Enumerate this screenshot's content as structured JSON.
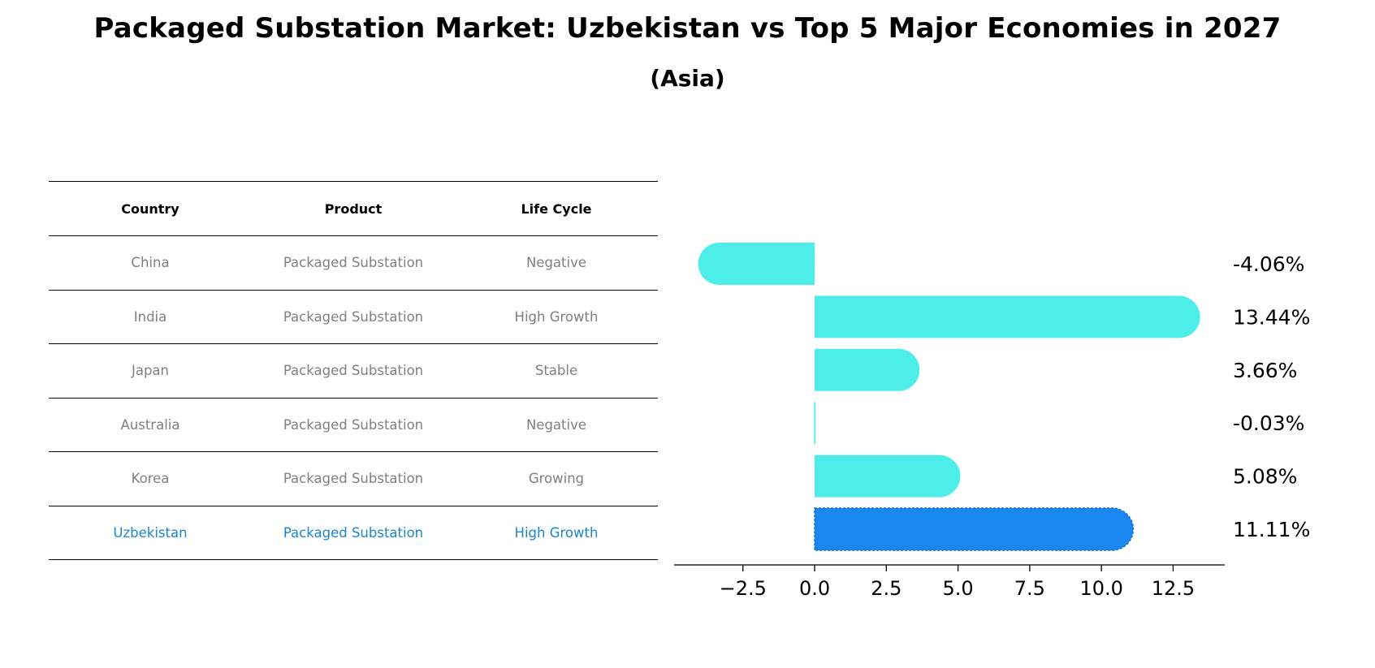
{
  "title": "Packaged Substation Market: Uzbekistan vs Top 5 Major Economies in 2027",
  "subtitle": "(Asia)",
  "table": {
    "headers": [
      "Country",
      "Product",
      "Life Cycle"
    ],
    "rows": [
      [
        "China",
        "Packaged Substation",
        "Negative"
      ],
      [
        "India",
        "Packaged Substation",
        "High Growth"
      ],
      [
        "Japan",
        "Packaged Substation",
        "Stable"
      ],
      [
        "Australia",
        "Packaged Substation",
        "Negative"
      ],
      [
        "Korea",
        "Packaged Substation",
        "Growing"
      ],
      [
        "Uzbekistan",
        "Packaged Substation",
        "High Growth"
      ]
    ]
  },
  "colors": {
    "bar": "#4deeea",
    "highlight_bar": "#1a86f0",
    "highlight_text": "#1a86d0",
    "muted_text": "#808080"
  },
  "chart_data": {
    "type": "bar",
    "orientation": "horizontal",
    "categories": [
      "China",
      "India",
      "Japan",
      "Australia",
      "Korea",
      "Uzbekistan"
    ],
    "values": [
      -4.06,
      13.44,
      3.66,
      -0.03,
      5.08,
      11.11
    ],
    "value_labels": [
      "-4.06%",
      "13.44%",
      "3.66%",
      "-0.03%",
      "5.08%",
      "11.11%"
    ],
    "highlight": "Uzbekistan",
    "xlim": [
      -4.9,
      14.3
    ],
    "xticks": [
      -2.5,
      0.0,
      2.5,
      5.0,
      7.5,
      10.0,
      12.5
    ],
    "xtick_labels": [
      "−2.5",
      "0.0",
      "2.5",
      "5.0",
      "7.5",
      "10.0",
      "12.5"
    ],
    "grid": false
  }
}
